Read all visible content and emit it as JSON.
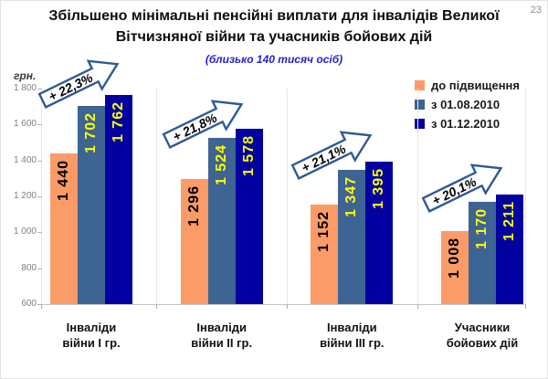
{
  "page_number": "23",
  "title_lines": [
    "Збільшено мінімальні пенсійні виплати для інвалідів Великої",
    "Вітчизняної війни та учасників бойових дій"
  ],
  "colors": {
    "bar_orange": "#FB9B67",
    "bar_steel_blue": "#3D6492",
    "bar_navy": "#0302A0",
    "value_label_yellow": "#FFFF00",
    "value_label_black": "#000000",
    "arrow_outline": "#2E5B93",
    "arrow_fill": "#FFFFFF",
    "subtitle_blue": "#2323CB",
    "axis_text_gray": "#7F7F7F"
  },
  "chart_data": {
    "type": "bar",
    "title": "Збільшено мінімальні пенсійні виплати для інвалідів Великої Вітчизняної війни та учасників бойових дій",
    "subtitle": "(близько 140 тисяч осіб)",
    "ylabel": "грн.",
    "ylim": [
      600,
      1800
    ],
    "ytick_step": 200,
    "ytick_labels": [
      "1 800",
      "1 600",
      "1 400",
      "1 200",
      "1 000",
      "800",
      "600"
    ],
    "grid": false,
    "legend_position": "top-right",
    "categories": [
      "Інваліди\nвійни І гр.",
      "Інваліди\nвійни ІІ гр.",
      "Інваліди\nвійни ІІІ гр.",
      "Учасники\nбойових дій"
    ],
    "series": [
      {
        "name": "до підвищення",
        "color": "#FB9B67",
        "value_label_color": "#000000",
        "values": [
          1440,
          1296,
          1152,
          1008
        ]
      },
      {
        "name": "з 01.08.2010",
        "color": "#3D6492",
        "value_label_color": "#FFFF00",
        "values": [
          1702,
          1524,
          1347,
          1170
        ]
      },
      {
        "name": "з 01.12.2010",
        "color": "#0302A0",
        "value_label_color": "#FFFF00",
        "values": [
          1762,
          1578,
          1395,
          1211
        ]
      }
    ],
    "growth_annotations": [
      "+ 22,3%",
      "+ 21,8%",
      "+ 21,1%",
      "+ 20,1%"
    ]
  }
}
